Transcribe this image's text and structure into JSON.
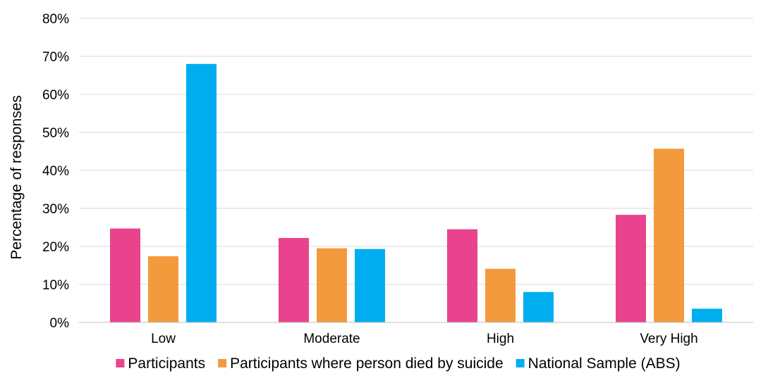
{
  "chart_data": {
    "type": "bar",
    "title": "",
    "xlabel": "",
    "ylabel": "Percentage of responses",
    "categories": [
      "Low",
      "Moderate",
      "High",
      "Very High"
    ],
    "series": [
      {
        "name": "Participants",
        "color": "#e8438c",
        "values": [
          24.7,
          22.2,
          24.5,
          28.3
        ]
      },
      {
        "name": "Participants where person died by suicide",
        "color": "#f39a3d",
        "values": [
          17.4,
          19.5,
          14.1,
          45.7
        ]
      },
      {
        "name": "National Sample (ABS)",
        "color": "#00aeef",
        "values": [
          68.0,
          19.3,
          8.0,
          3.6
        ]
      }
    ],
    "ylim": [
      0,
      80
    ],
    "yticks": [
      0,
      10,
      20,
      30,
      40,
      50,
      60,
      70,
      80
    ],
    "ytick_labels": [
      "0%",
      "10%",
      "20%",
      "30%",
      "40%",
      "50%",
      "60%",
      "70%",
      "80%"
    ],
    "grid": true,
    "legend_position": "bottom"
  }
}
